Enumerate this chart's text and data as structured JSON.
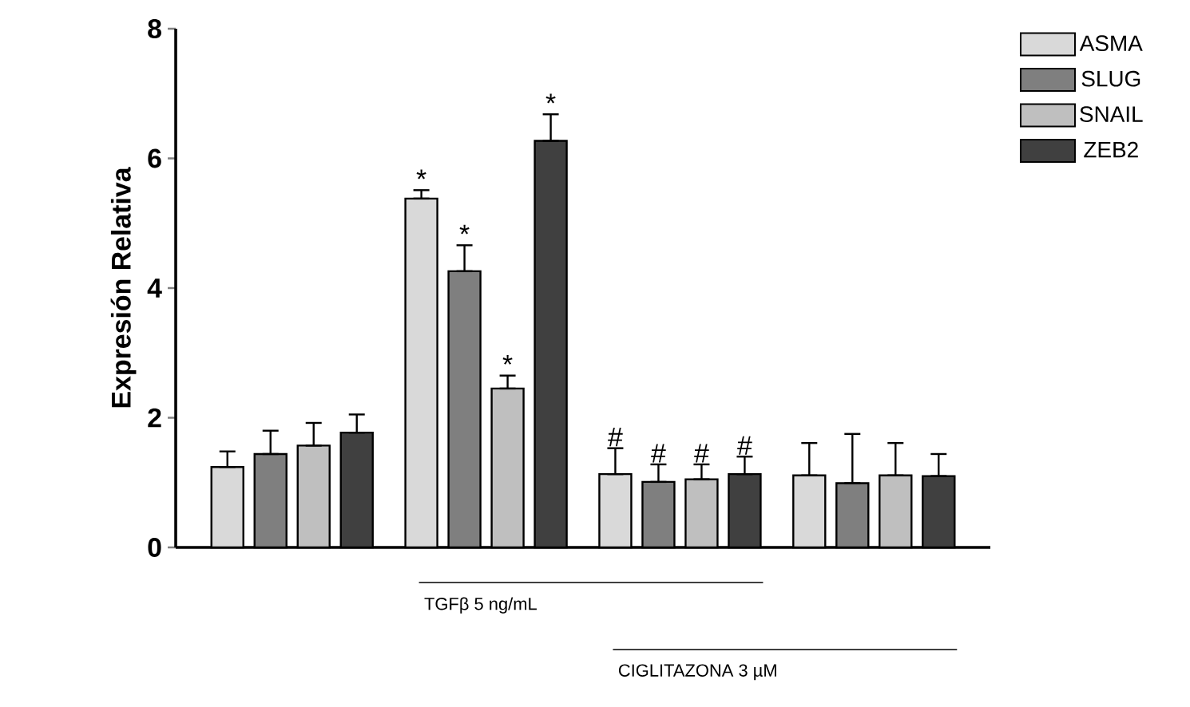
{
  "chart_data": {
    "type": "bar",
    "ylabel": "Expresión Relativa",
    "categories": [
      null,
      null,
      null,
      null
    ],
    "ylim": [
      0,
      8
    ],
    "yticks": [
      0,
      2,
      4,
      6,
      8
    ],
    "legend": "top right",
    "series": [
      {
        "name": "ASMA",
        "color": "#d9d9d9",
        "values": [
          1.24,
          5.38,
          1.13,
          1.11
        ],
        "errors": [
          [
            1.24,
            1.48
          ],
          [
            5.38,
            5.51
          ],
          [
            1.13,
            1.53
          ],
          [
            1.11,
            1.61
          ]
        ]
      },
      {
        "name": "SLUG",
        "color": "#7f7f7f",
        "values": [
          1.44,
          4.26,
          1.01,
          0.99
        ],
        "errors": [
          [
            1.44,
            1.8
          ],
          [
            4.26,
            4.66
          ],
          [
            1.01,
            1.28
          ],
          [
            0.99,
            1.75
          ]
        ]
      },
      {
        "name": "SNAIL",
        "color": "#bfbfbf",
        "values": [
          1.57,
          2.45,
          1.05,
          1.11
        ],
        "errors": [
          [
            1.57,
            1.92
          ],
          [
            2.45,
            2.65
          ],
          [
            1.05,
            1.28
          ],
          [
            1.11,
            1.61
          ]
        ]
      },
      {
        "name": "ZEB2",
        "color": "#404040",
        "values": [
          1.77,
          6.27,
          1.13,
          1.1
        ],
        "errors": [
          [
            1.77,
            2.05
          ],
          [
            6.27,
            6.68
          ],
          [
            1.13,
            1.4
          ],
          [
            1.1,
            1.44
          ]
        ]
      }
    ],
    "annotations": [
      "*",
      "*",
      "*",
      "*",
      "#",
      "#",
      "#",
      "#",
      "TGFβ 5 ng/mL",
      "CIGLITAZONA 3 µM"
    ]
  }
}
